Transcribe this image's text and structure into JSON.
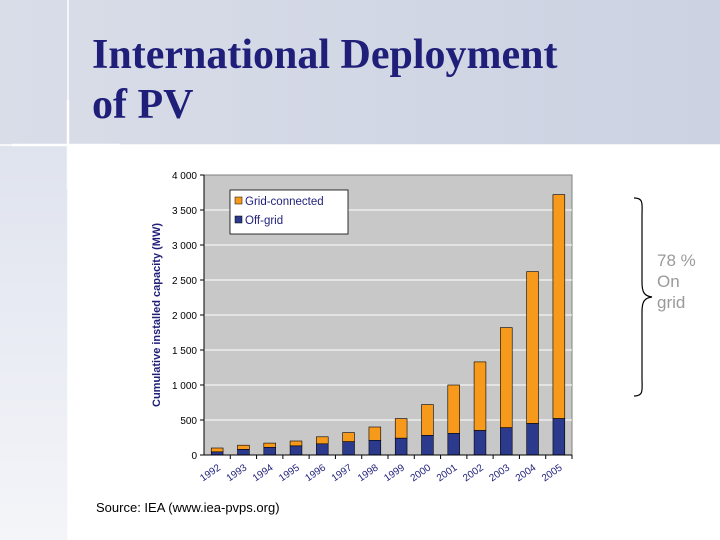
{
  "slide": {
    "title_line1": "International Deployment",
    "title_line2": "of PV",
    "source": "Source: IEA (www.iea-pvps.org)",
    "annotation": {
      "line1": "78 %",
      "line2": "On",
      "line3": "grid"
    }
  },
  "colors": {
    "title": "#1f1f7a",
    "plot_bg": "#c8c8c8",
    "grid_connected": "#f79a1c",
    "off_grid": "#2b3a8c",
    "annotation": "#9a9a9a"
  },
  "chart_data": {
    "type": "bar",
    "stacked": true,
    "title": "",
    "xlabel": "",
    "ylabel": "Cumulative installed capacity (MW)",
    "ylim": [
      0,
      4000
    ],
    "yticks": [
      0,
      500,
      1000,
      1500,
      2000,
      2500,
      3000,
      3500,
      4000
    ],
    "ytick_labels": [
      "0",
      "500",
      "1 000",
      "1 500",
      "2 000",
      "2 500",
      "3 000",
      "3 500",
      "4 000"
    ],
    "grid": true,
    "legend_position": "top-left",
    "categories": [
      "1992",
      "1993",
      "1994",
      "1995",
      "1996",
      "1997",
      "1998",
      "1999",
      "2000",
      "2001",
      "2002",
      "2003",
      "2004",
      "2005"
    ],
    "series": [
      {
        "name": "Off-grid",
        "color": "#2b3a8c",
        "values": [
          45,
          80,
          110,
          130,
          160,
          190,
          210,
          240,
          280,
          310,
          350,
          390,
          450,
          520
        ]
      },
      {
        "name": "Grid-connected",
        "color": "#f79a1c",
        "values": [
          55,
          60,
          60,
          70,
          100,
          130,
          190,
          280,
          440,
          690,
          980,
          1430,
          2170,
          3200
        ]
      }
    ],
    "legend_order": [
      "Grid-connected",
      "Off-grid"
    ]
  }
}
